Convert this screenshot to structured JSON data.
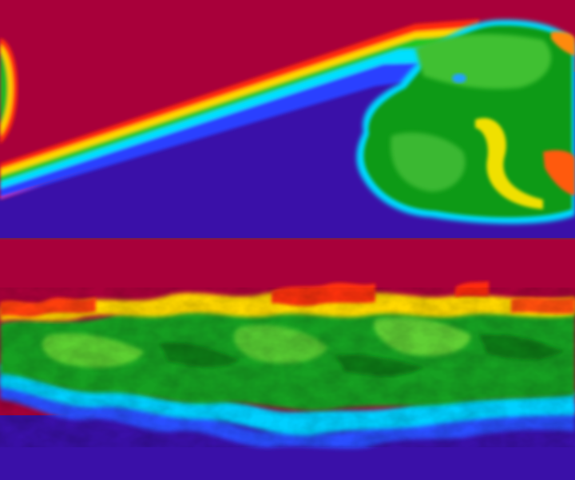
{
  "image": {
    "kind": "flow-visualization",
    "colormap": "jet",
    "panels": [
      {
        "name": "top-panel",
        "description_colors": {
          "upper_fluid": "#a8003a",
          "lower_fluid": "#3a10a8",
          "mixing_core": "#0f9a18",
          "interface_high": "#ff2a10",
          "interface_mid": "#ffe000",
          "interface_low": "#00d8ff"
        }
      },
      {
        "name": "bottom-panel",
        "description_colors": {
          "upper_fluid": "#a8003a",
          "lower_fluid": "#3a10a8",
          "mixing_core": "#1aa020",
          "interface_high": "#ff2a10",
          "interface_mid": "#ffe000",
          "interface_low": "#00c8ff"
        }
      }
    ],
    "divider_color": "#7a1b4a"
  }
}
